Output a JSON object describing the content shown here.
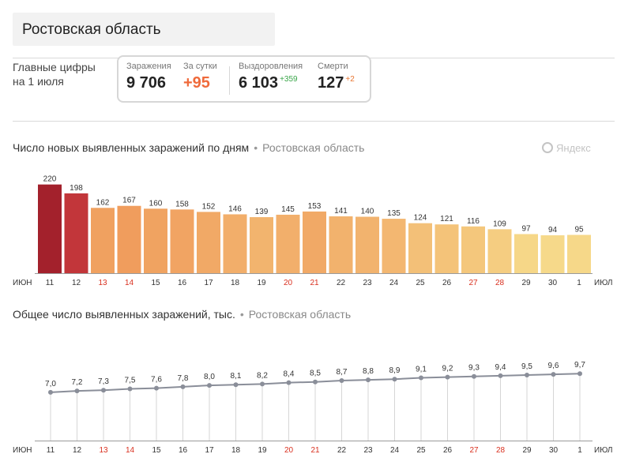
{
  "region": {
    "title": "Ростовская область"
  },
  "summary": {
    "main_label_line1": "Главные цифры",
    "main_label_line2": "на 1 июля",
    "infections_label": "Заражения",
    "infections_value": "9 706",
    "per_day_label": "За сутки",
    "per_day_value": "+95",
    "recovered_label": "Выздоровления",
    "recovered_value": "6 103",
    "recovered_delta": "+359",
    "deaths_label": "Смерти",
    "deaths_value": "127",
    "deaths_delta": "+2"
  },
  "watermark": "Яндекс",
  "colors": {
    "bar_dark": "#a3212c",
    "bar_red": "#c2363a",
    "bar_orange": "#ed8148",
    "bar_yellow": "#f6d98a",
    "weekend_tick": "#d9301f",
    "line": "#8a8e99"
  },
  "chart_data": [
    {
      "type": "bar",
      "title": "Число новых выявленных заражений по дням",
      "subtitle": "Ростовская область",
      "axis_start": "ИЮН",
      "axis_end": "ИЮЛ",
      "categories": [
        "11",
        "12",
        "13",
        "14",
        "15",
        "16",
        "17",
        "18",
        "19",
        "20",
        "21",
        "22",
        "23",
        "24",
        "25",
        "26",
        "27",
        "28",
        "29",
        "30",
        "1"
      ],
      "weekend_categories": [
        "13",
        "14",
        "20",
        "21",
        "27",
        "28"
      ],
      "values": [
        220,
        198,
        162,
        167,
        160,
        158,
        152,
        146,
        139,
        145,
        153,
        141,
        140,
        135,
        124,
        121,
        116,
        109,
        97,
        94,
        95
      ],
      "ylim": [
        0,
        235
      ]
    },
    {
      "type": "line",
      "title": "Общее число выявленных заражений, тыс.",
      "subtitle": "Ростовская область",
      "axis_start": "ИЮН",
      "axis_end": "ИЮЛ",
      "categories": [
        "11",
        "12",
        "13",
        "14",
        "15",
        "16",
        "17",
        "18",
        "19",
        "20",
        "21",
        "22",
        "23",
        "24",
        "25",
        "26",
        "27",
        "28",
        "29",
        "30",
        "1"
      ],
      "weekend_categories": [
        "13",
        "14",
        "20",
        "21",
        "27",
        "28"
      ],
      "values": [
        7.0,
        7.2,
        7.3,
        7.5,
        7.6,
        7.8,
        8.0,
        8.1,
        8.2,
        8.4,
        8.5,
        8.7,
        8.8,
        8.9,
        9.1,
        9.2,
        9.3,
        9.4,
        9.5,
        9.6,
        9.7
      ],
      "value_labels": [
        "7,0",
        "7,2",
        "7,3",
        "7,5",
        "7,6",
        "7,8",
        "8,0",
        "8,1",
        "8,2",
        "8,4",
        "8,5",
        "8,7",
        "8,8",
        "8,9",
        "9,1",
        "9,2",
        "9,3",
        "9,4",
        "9,5",
        "9,6",
        "9,7"
      ],
      "ylim": [
        0,
        10.3
      ]
    }
  ]
}
